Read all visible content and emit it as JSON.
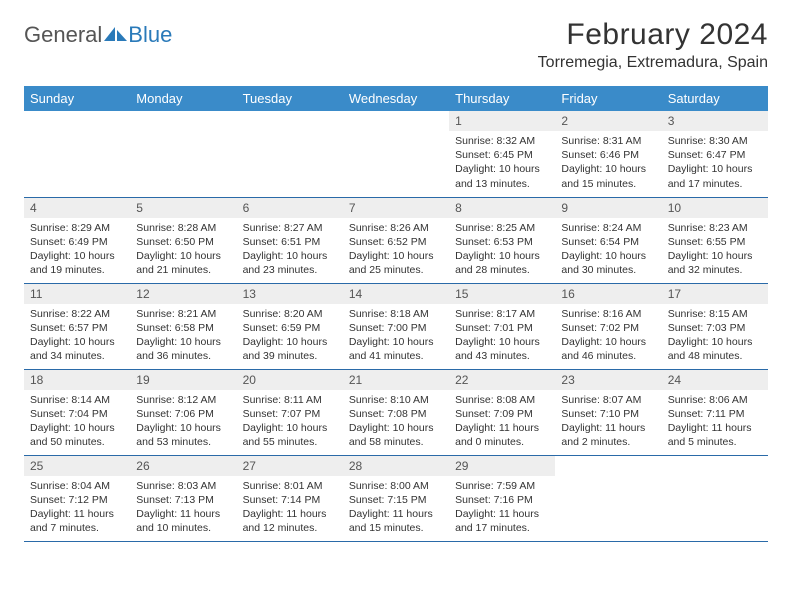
{
  "logo": {
    "text_a": "General",
    "text_b": "Blue",
    "brand_color": "#2a7ab9"
  },
  "title": {
    "month": "February 2024",
    "location": "Torremegia, Extremadura, Spain"
  },
  "weekdays": [
    "Sunday",
    "Monday",
    "Tuesday",
    "Wednesday",
    "Thursday",
    "Friday",
    "Saturday"
  ],
  "colors": {
    "header_bg": "#3a8bc9",
    "header_text": "#ffffff",
    "daynum_bg": "#eeeeee",
    "cell_border": "#2a6aa8",
    "body_text": "#333333"
  },
  "weeks": [
    [
      null,
      null,
      null,
      null,
      {
        "n": "1",
        "sunrise": "8:32 AM",
        "sunset": "6:45 PM",
        "daylight": "10 hours and 13 minutes."
      },
      {
        "n": "2",
        "sunrise": "8:31 AM",
        "sunset": "6:46 PM",
        "daylight": "10 hours and 15 minutes."
      },
      {
        "n": "3",
        "sunrise": "8:30 AM",
        "sunset": "6:47 PM",
        "daylight": "10 hours and 17 minutes."
      }
    ],
    [
      {
        "n": "4",
        "sunrise": "8:29 AM",
        "sunset": "6:49 PM",
        "daylight": "10 hours and 19 minutes."
      },
      {
        "n": "5",
        "sunrise": "8:28 AM",
        "sunset": "6:50 PM",
        "daylight": "10 hours and 21 minutes."
      },
      {
        "n": "6",
        "sunrise": "8:27 AM",
        "sunset": "6:51 PM",
        "daylight": "10 hours and 23 minutes."
      },
      {
        "n": "7",
        "sunrise": "8:26 AM",
        "sunset": "6:52 PM",
        "daylight": "10 hours and 25 minutes."
      },
      {
        "n": "8",
        "sunrise": "8:25 AM",
        "sunset": "6:53 PM",
        "daylight": "10 hours and 28 minutes."
      },
      {
        "n": "9",
        "sunrise": "8:24 AM",
        "sunset": "6:54 PM",
        "daylight": "10 hours and 30 minutes."
      },
      {
        "n": "10",
        "sunrise": "8:23 AM",
        "sunset": "6:55 PM",
        "daylight": "10 hours and 32 minutes."
      }
    ],
    [
      {
        "n": "11",
        "sunrise": "8:22 AM",
        "sunset": "6:57 PM",
        "daylight": "10 hours and 34 minutes."
      },
      {
        "n": "12",
        "sunrise": "8:21 AM",
        "sunset": "6:58 PM",
        "daylight": "10 hours and 36 minutes."
      },
      {
        "n": "13",
        "sunrise": "8:20 AM",
        "sunset": "6:59 PM",
        "daylight": "10 hours and 39 minutes."
      },
      {
        "n": "14",
        "sunrise": "8:18 AM",
        "sunset": "7:00 PM",
        "daylight": "10 hours and 41 minutes."
      },
      {
        "n": "15",
        "sunrise": "8:17 AM",
        "sunset": "7:01 PM",
        "daylight": "10 hours and 43 minutes."
      },
      {
        "n": "16",
        "sunrise": "8:16 AM",
        "sunset": "7:02 PM",
        "daylight": "10 hours and 46 minutes."
      },
      {
        "n": "17",
        "sunrise": "8:15 AM",
        "sunset": "7:03 PM",
        "daylight": "10 hours and 48 minutes."
      }
    ],
    [
      {
        "n": "18",
        "sunrise": "8:14 AM",
        "sunset": "7:04 PM",
        "daylight": "10 hours and 50 minutes."
      },
      {
        "n": "19",
        "sunrise": "8:12 AM",
        "sunset": "7:06 PM",
        "daylight": "10 hours and 53 minutes."
      },
      {
        "n": "20",
        "sunrise": "8:11 AM",
        "sunset": "7:07 PM",
        "daylight": "10 hours and 55 minutes."
      },
      {
        "n": "21",
        "sunrise": "8:10 AM",
        "sunset": "7:08 PM",
        "daylight": "10 hours and 58 minutes."
      },
      {
        "n": "22",
        "sunrise": "8:08 AM",
        "sunset": "7:09 PM",
        "daylight": "11 hours and 0 minutes."
      },
      {
        "n": "23",
        "sunrise": "8:07 AM",
        "sunset": "7:10 PM",
        "daylight": "11 hours and 2 minutes."
      },
      {
        "n": "24",
        "sunrise": "8:06 AM",
        "sunset": "7:11 PM",
        "daylight": "11 hours and 5 minutes."
      }
    ],
    [
      {
        "n": "25",
        "sunrise": "8:04 AM",
        "sunset": "7:12 PM",
        "daylight": "11 hours and 7 minutes."
      },
      {
        "n": "26",
        "sunrise": "8:03 AM",
        "sunset": "7:13 PM",
        "daylight": "11 hours and 10 minutes."
      },
      {
        "n": "27",
        "sunrise": "8:01 AM",
        "sunset": "7:14 PM",
        "daylight": "11 hours and 12 minutes."
      },
      {
        "n": "28",
        "sunrise": "8:00 AM",
        "sunset": "7:15 PM",
        "daylight": "11 hours and 15 minutes."
      },
      {
        "n": "29",
        "sunrise": "7:59 AM",
        "sunset": "7:16 PM",
        "daylight": "11 hours and 17 minutes."
      },
      null,
      null
    ]
  ],
  "labels": {
    "sunrise": "Sunrise: ",
    "sunset": "Sunset: ",
    "daylight": "Daylight: "
  }
}
